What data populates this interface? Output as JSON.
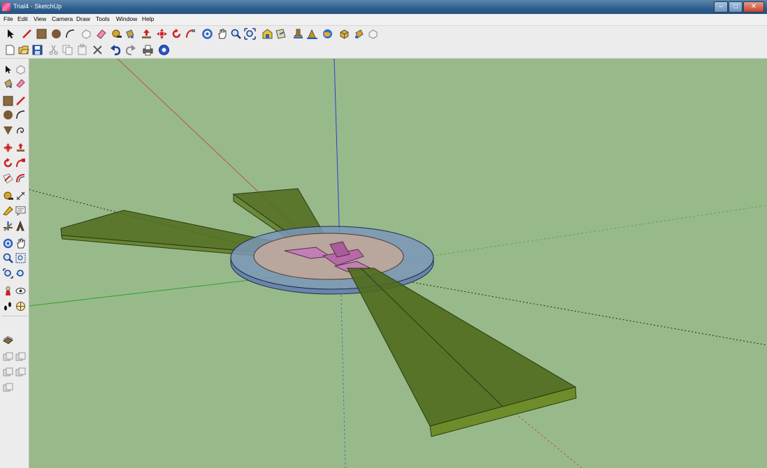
{
  "window": {
    "title": "Trial4 - SketchUp",
    "controls": {
      "minimize": "–",
      "maximize": "□",
      "close": "✕"
    }
  },
  "menu": [
    "File",
    "Edit",
    "View",
    "Camera",
    "Draw",
    "Tools",
    "Window",
    "Help"
  ],
  "toolbar_main": [
    "select-icon",
    "pencil-icon",
    "rectangle-icon",
    "circle-icon",
    "arc-icon",
    "make-component-icon",
    "eraser-icon",
    "tape-measure-icon",
    "paint-bucket-icon",
    "push-pull-icon",
    "move-icon",
    "rotate-icon",
    "follow-me-icon",
    "orbit-icon",
    "pan-icon",
    "zoom-icon",
    "zoom-extents-icon",
    "warehouse-icon",
    "share-model-icon",
    "add-location-icon",
    "toggle-terrain-icon",
    "google-earth-icon",
    "component-icon",
    "materials-icon",
    "styles-icon"
  ],
  "toolbar_standard": [
    "new-icon",
    "open-icon",
    "save-icon",
    "cut-icon",
    "copy-icon",
    "paste-icon",
    "delete-icon",
    "undo-icon",
    "redo-icon",
    "print-icon",
    "model-info-icon"
  ],
  "left_toolbar": [
    "select-icon",
    "make-component-icon",
    "paint-bucket-icon",
    "eraser-icon",
    "rectangle-icon",
    "line-icon",
    "circle-icon",
    "arc-icon",
    "polygon-icon",
    "freehand-icon",
    "move-icon",
    "push-pull-icon",
    "rotate-icon",
    "follow-me-icon",
    "scale-icon",
    "offset-icon",
    "tape-measure-icon",
    "dimension-icon",
    "protractor-icon",
    "text-icon",
    "axes-icon",
    "3d-text-icon",
    "orbit-icon",
    "pan-icon",
    "zoom-icon",
    "zoom-window-icon",
    "zoom-extents-icon",
    "previous-icon",
    "position-camera-icon",
    "look-around-icon",
    "walk-icon",
    "section-plane-icon",
    "sandbox-icon",
    "section-display-icon",
    "section-cuts-icon",
    "layer-icon",
    "outliner-icon",
    "iso-icon"
  ],
  "colors": {
    "viewport_bg": "#98ba8a",
    "axis_red": "#c0504d",
    "axis_green": "#2f9e2f",
    "axis_blue": "#2b3cd6",
    "blade_fill": "#4f6b1c",
    "ring_fill": "#7a97b8",
    "inner_fill": "#b9a69c",
    "hub_fill": "#c27fb4"
  }
}
